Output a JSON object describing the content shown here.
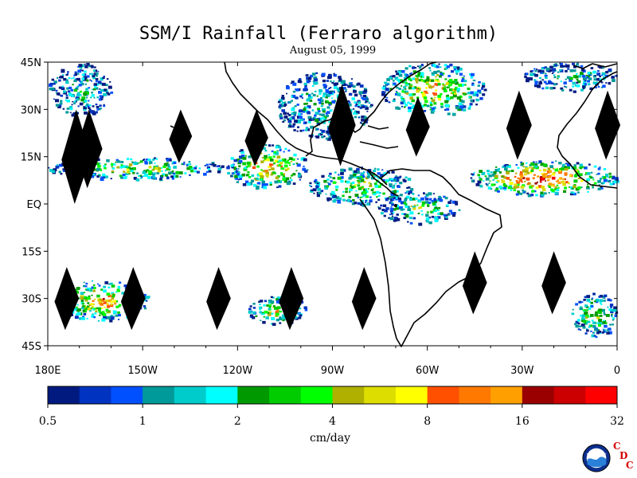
{
  "title": "SSM/I Rainfall (Ferraro algorithm)",
  "subtitle": "August 05, 1999",
  "chart_data": {
    "type": "heatmap",
    "title": "SSM/I Rainfall (Ferraro algorithm)",
    "subtitle": "August 05, 1999",
    "xlim": [
      180,
      360
    ],
    "ylim": [
      -45,
      45
    ],
    "x_ticks": [
      {
        "label": "180E",
        "lon": 180
      },
      {
        "label": "150W",
        "lon": 210
      },
      {
        "label": "120W",
        "lon": 240
      },
      {
        "label": "90W",
        "lon": 270
      },
      {
        "label": "60W",
        "lon": 300
      },
      {
        "label": "30W",
        "lon": 330
      },
      {
        "label": "0",
        "lon": 360
      }
    ],
    "y_ticks": [
      {
        "label": "45N",
        "lat": 45
      },
      {
        "label": "30N",
        "lat": 30
      },
      {
        "label": "15N",
        "lat": 15
      },
      {
        "label": "EQ",
        "lat": 0
      },
      {
        "label": "15S",
        "lat": -15
      },
      {
        "label": "30S",
        "lat": -30
      },
      {
        "label": "45S",
        "lat": -45
      }
    ],
    "colorbar": {
      "label": "cm/day",
      "tick_labels": [
        "0.5",
        "1",
        "2",
        "4",
        "8",
        "16",
        "32"
      ],
      "colors": [
        "#001a80",
        "#0033c0",
        "#0050ff",
        "#009a9a",
        "#00cccc",
        "#00ffff",
        "#009a00",
        "#00cc00",
        "#00ff00",
        "#b0b000",
        "#dddd00",
        "#ffff00",
        "#ff5000",
        "#ff7800",
        "#ffa000",
        "#9a0000",
        "#cc0000",
        "#ff0000"
      ]
    },
    "rain_regions": [
      {
        "lon": [
          180,
          236
        ],
        "lat": [
          8,
          15
        ],
        "peak": 0.55
      },
      {
        "lon": [
          236,
          262
        ],
        "lat": [
          5,
          19
        ],
        "peak": 0.75
      },
      {
        "lon": [
          262,
          295
        ],
        "lat": [
          0,
          12
        ],
        "peak": 0.55
      },
      {
        "lon": [
          284,
          310
        ],
        "lat": [
          -6,
          4
        ],
        "peak": 0.45
      },
      {
        "lon": [
          252,
          282
        ],
        "lat": [
          21,
          42
        ],
        "peak": 0.35
      },
      {
        "lon": [
          285,
          318
        ],
        "lat": [
          28,
          45
        ],
        "peak": 0.7
      },
      {
        "lon": [
          313,
          360
        ],
        "lat": [
          3,
          14
        ],
        "peak": 0.95
      },
      {
        "lon": [
          182,
          212
        ],
        "lat": [
          -37,
          -24
        ],
        "peak": 0.75
      },
      {
        "lon": [
          243,
          262
        ],
        "lat": [
          -38,
          -29
        ],
        "peak": 0.6
      },
      {
        "lon": [
          345,
          360
        ],
        "lat": [
          -42,
          -28
        ],
        "peak": 0.5
      },
      {
        "lon": [
          180,
          200
        ],
        "lat": [
          28,
          45
        ],
        "peak": 0.3
      },
      {
        "lon": [
          330,
          360
        ],
        "lat": [
          36,
          45
        ],
        "peak": 0.3
      }
    ],
    "no_data_swaths": [
      {
        "lon": 186,
        "lat": [
          -40,
          -20
        ]
      },
      {
        "lon": 189,
        "lat": [
          0,
          30
        ]
      },
      {
        "lon": 193,
        "lat": [
          5,
          30
        ]
      },
      {
        "lon": 207,
        "lat": [
          -40,
          -20
        ]
      },
      {
        "lon": 222,
        "lat": [
          13,
          30
        ]
      },
      {
        "lon": 234,
        "lat": [
          -40,
          -20
        ]
      },
      {
        "lon": 246,
        "lat": [
          12,
          30
        ]
      },
      {
        "lon": 257,
        "lat": [
          -40,
          -20
        ]
      },
      {
        "lon": 273,
        "lat": [
          12,
          38
        ]
      },
      {
        "lon": 280,
        "lat": [
          -40,
          -20
        ]
      },
      {
        "lon": 297,
        "lat": [
          15,
          34
        ]
      },
      {
        "lon": 315,
        "lat": [
          -35,
          -15
        ]
      },
      {
        "lon": 329,
        "lat": [
          14,
          36
        ]
      },
      {
        "lon": 340,
        "lat": [
          -35,
          -15
        ]
      },
      {
        "lon": 357,
        "lat": [
          14,
          36
        ]
      }
    ]
  }
}
